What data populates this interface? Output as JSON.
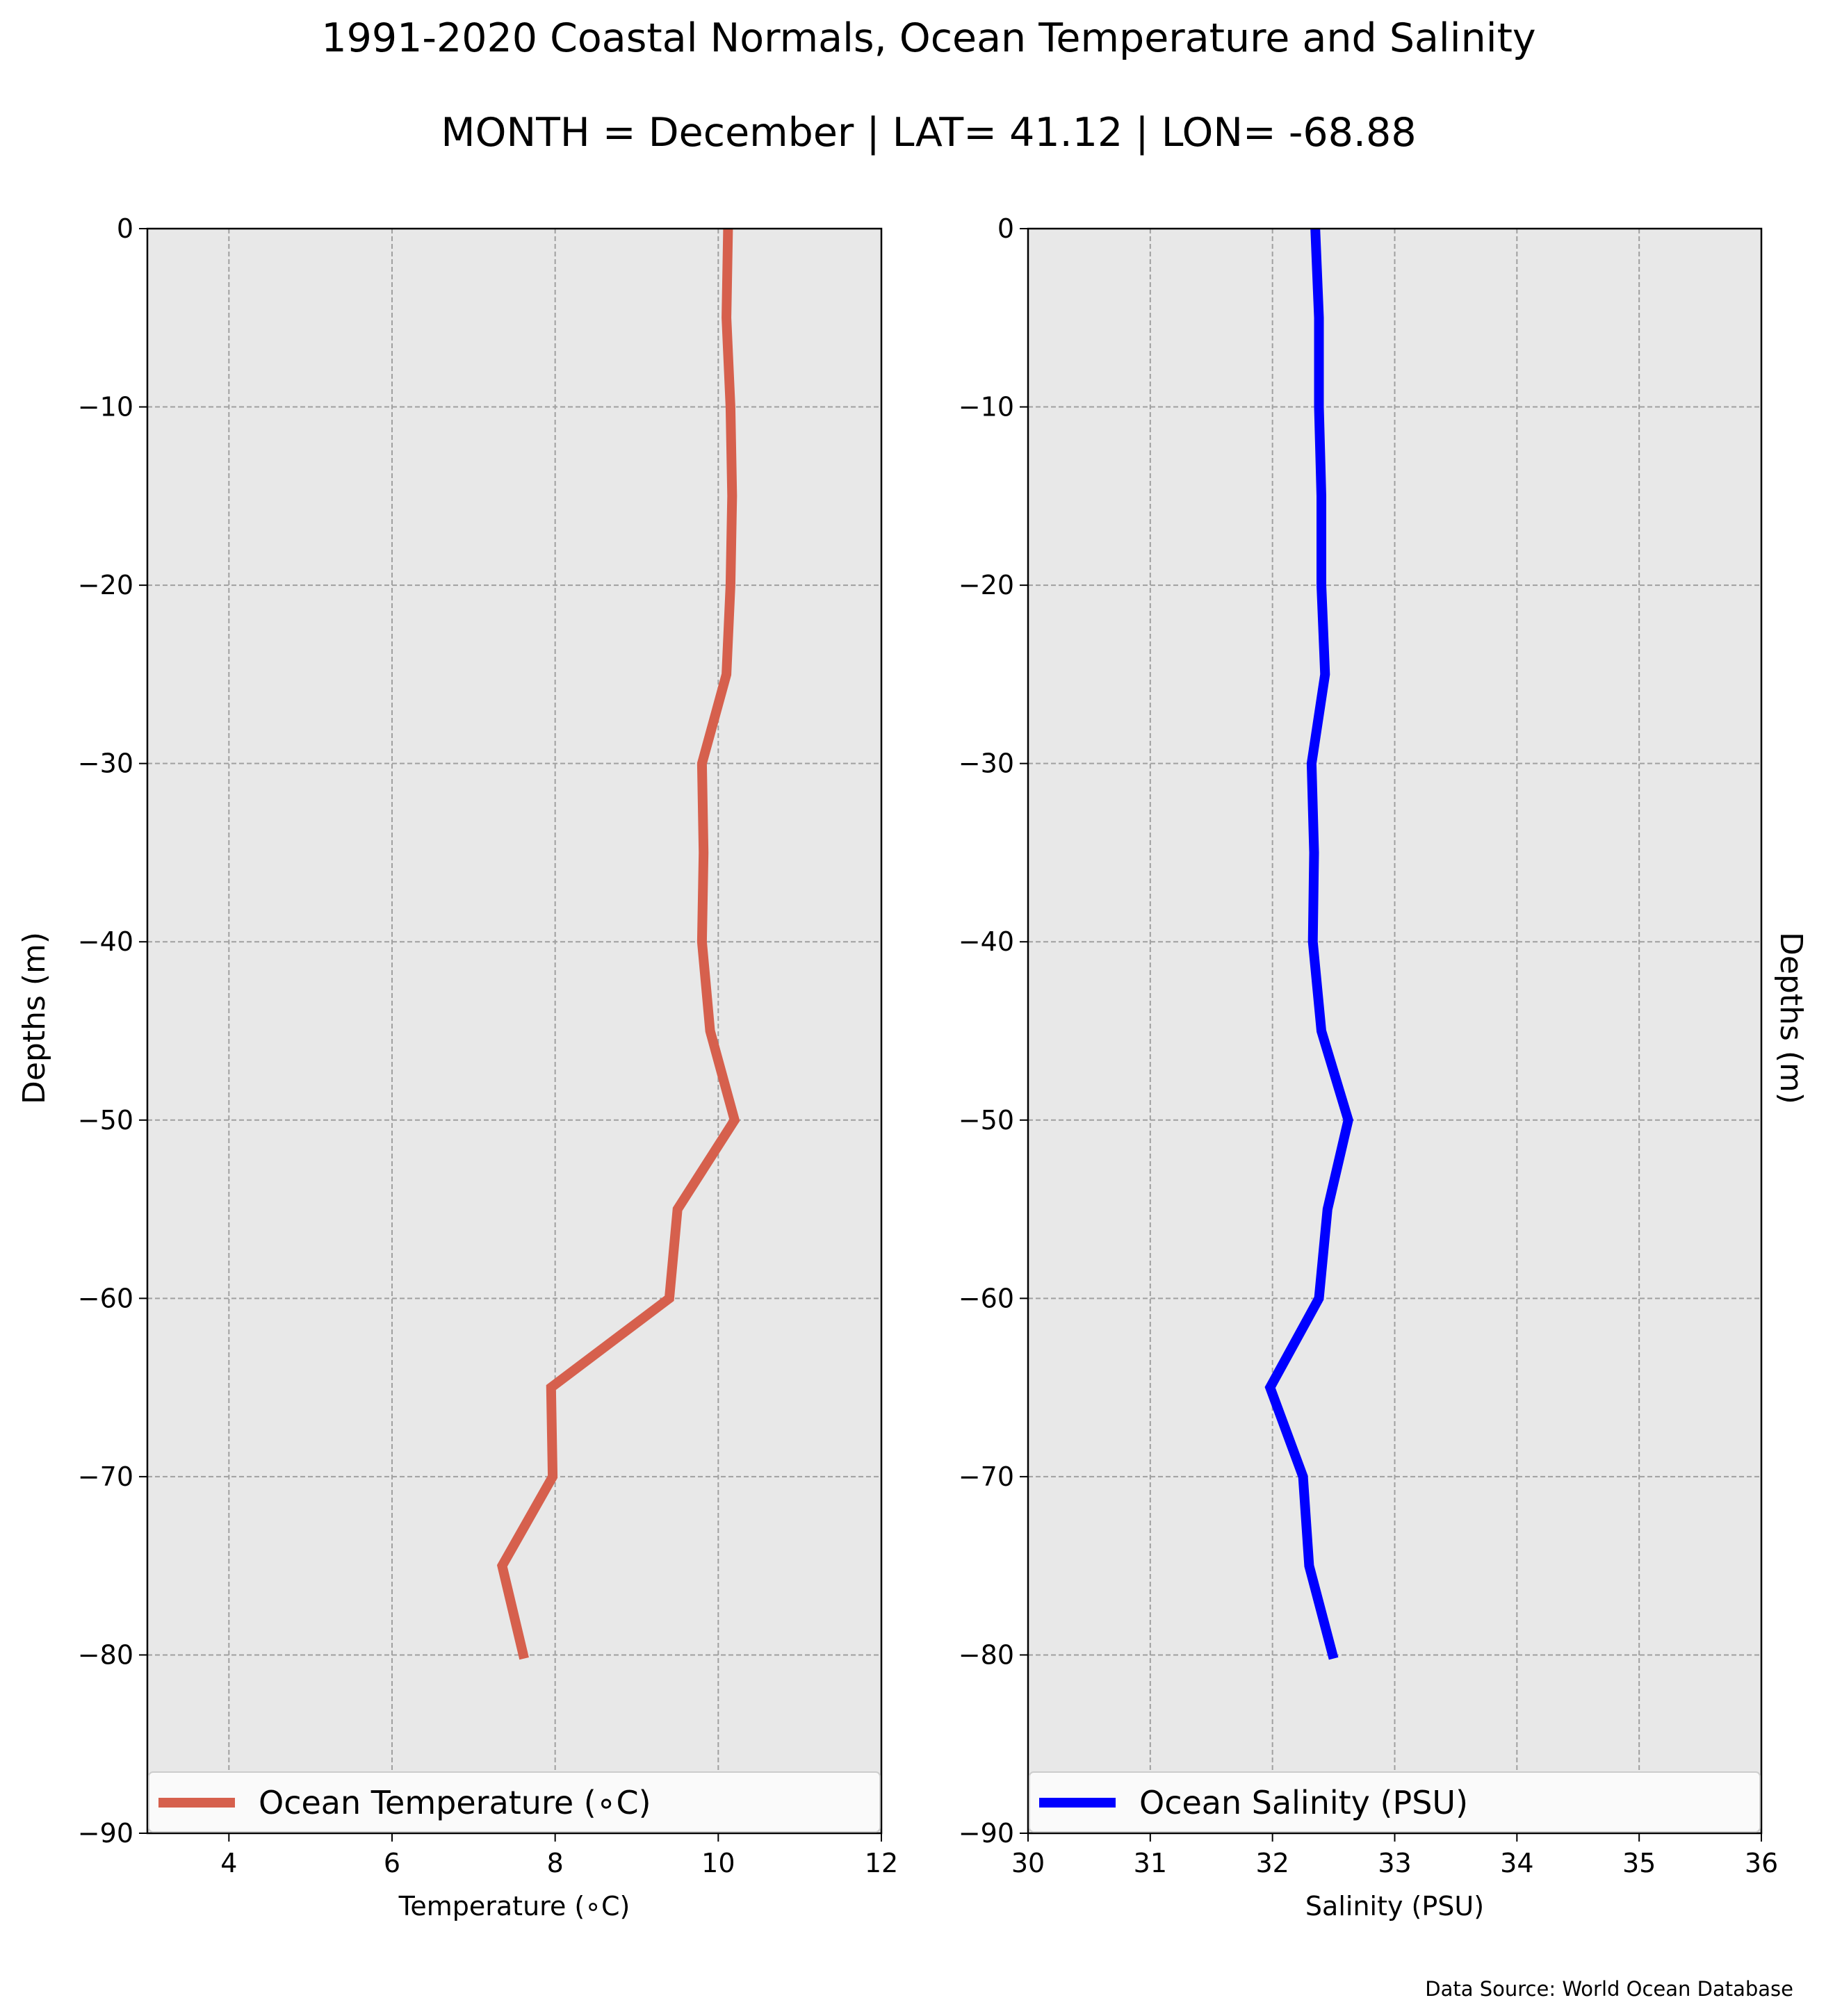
{
  "title": "1991-2020 Coastal Normals, Ocean Temperature and Salinity",
  "subtitle": "MONTH = December | LAT= 41.12 | LON= -68.88",
  "source": "Data Source: World Ocean Database",
  "chart_data": [
    {
      "type": "line",
      "xlabel": "Temperature (∘C)",
      "ylabel": "Depths (m)",
      "xlim": [
        3,
        12
      ],
      "ylim": [
        -90,
        0
      ],
      "xticks": [
        "4",
        "6",
        "8",
        "10",
        "12"
      ],
      "yticks": [
        "0",
        "−10",
        "−20",
        "−30",
        "−40",
        "−50",
        "−60",
        "−70",
        "−80",
        "−90"
      ],
      "grid": true,
      "legend_position": "lower-center",
      "series": [
        {
          "name": "Ocean Temperature (∘C)",
          "color": "#d6604d",
          "x": [
            10.12,
            10.1,
            10.15,
            10.17,
            10.15,
            10.1,
            9.8,
            9.82,
            9.8,
            9.9,
            10.2,
            9.5,
            9.4,
            7.95,
            7.97,
            7.35,
            7.62
          ],
          "y": [
            0,
            -5,
            -10,
            -15,
            -20,
            -25,
            -30,
            -35,
            -40,
            -45,
            -50,
            -55,
            -60,
            -65,
            -70,
            -75,
            -80.2
          ]
        }
      ]
    },
    {
      "type": "line",
      "xlabel": "Salinity (PSU)",
      "ylabel": "Depths (m)",
      "xlim": [
        30,
        36
      ],
      "ylim": [
        -90,
        0
      ],
      "xticks": [
        "30",
        "31",
        "32",
        "33",
        "34",
        "35",
        "36"
      ],
      "yticks": [
        "0",
        "−10",
        "−20",
        "−30",
        "−40",
        "−50",
        "−60",
        "−70",
        "−80",
        "−90"
      ],
      "grid": true,
      "legend_position": "lower-center",
      "series": [
        {
          "name": "Ocean Salinity (PSU)",
          "color": "#0000ff",
          "x": [
            32.35,
            32.38,
            32.38,
            32.4,
            32.4,
            32.43,
            32.32,
            32.34,
            32.33,
            32.4,
            32.62,
            32.45,
            32.38,
            31.98,
            32.25,
            32.3,
            32.5
          ],
          "y": [
            0,
            -5,
            -10,
            -15,
            -20,
            -25,
            -30,
            -35,
            -40,
            -45,
            -50,
            -55,
            -60,
            -65,
            -70,
            -75,
            -80.2
          ]
        }
      ]
    }
  ]
}
